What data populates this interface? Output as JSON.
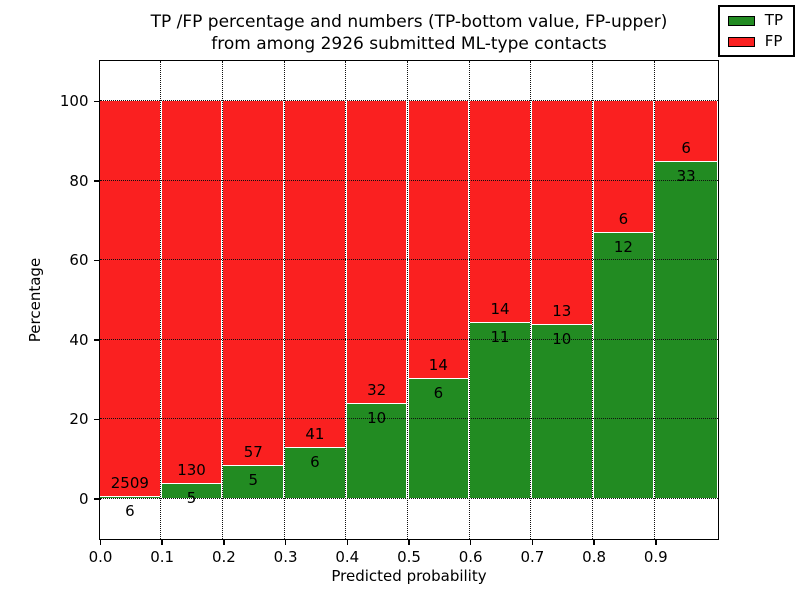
{
  "title": {
    "line1": "TP /FP percentage and numbers (TP-bottom value, FP-upper)",
    "line2": "from among 2926 submitted ML-type contacts"
  },
  "axes": {
    "xlabel": "Predicted probability",
    "ylabel": "Percentage",
    "x_tick_labels": [
      "0.0",
      "0.1",
      "0.2",
      "0.3",
      "0.4",
      "0.5",
      "0.6",
      "0.7",
      "0.8",
      "0.9"
    ],
    "y_tick_labels": [
      "0",
      "20",
      "40",
      "60",
      "80",
      "100"
    ],
    "y_tick_values": [
      0,
      20,
      40,
      60,
      80,
      100
    ],
    "ylim": [
      -10,
      110
    ],
    "xlim": [
      0.0,
      1.0
    ],
    "grid_style": "dotted"
  },
  "legend": {
    "position": "upper right",
    "items": [
      {
        "label": "TP",
        "color": "#228b22"
      },
      {
        "label": "FP",
        "color": "#fa2020"
      }
    ]
  },
  "chart_data": {
    "type": "bar",
    "stacked": true,
    "normalized": "each bar totals 100%",
    "title": "TP /FP percentage and numbers (TP-bottom value, FP-upper) from among 2926 submitted ML-type contacts",
    "xlabel": "Predicted probability",
    "ylabel": "Percentage",
    "bin_width": 0.1,
    "categories": [
      0.0,
      0.1,
      0.2,
      0.3,
      0.4,
      0.5,
      0.6,
      0.7,
      0.8,
      0.9
    ],
    "series": [
      {
        "name": "TP",
        "color": "#228b22",
        "counts": [
          6,
          5,
          5,
          6,
          10,
          6,
          11,
          10,
          12,
          33
        ]
      },
      {
        "name": "FP",
        "color": "#fa2020",
        "counts": [
          2509,
          130,
          57,
          41,
          32,
          14,
          14,
          13,
          6,
          6
        ]
      }
    ],
    "tp_percent": [
      0.24,
      3.7,
      8.06,
      12.77,
      23.81,
      30.0,
      44.0,
      43.48,
      66.67,
      84.62
    ],
    "total_contacts": 2926,
    "ylim": [
      -10,
      110
    ],
    "legend_position": "upper right",
    "grid": "dotted"
  }
}
